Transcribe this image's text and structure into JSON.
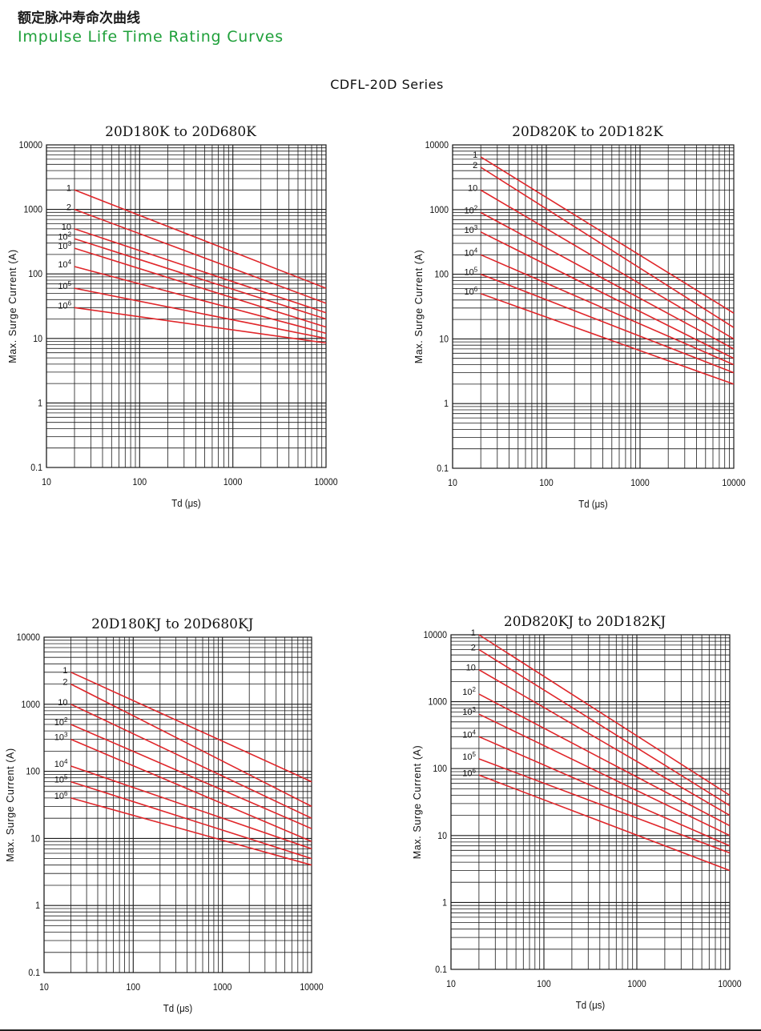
{
  "header": {
    "title_cn": "额定脉冲寿命次曲线",
    "title_en": "Impulse Life Time Rating Curves",
    "series": "CDFL-20D Series"
  },
  "colors": {
    "curve": "#e0262a",
    "grid": "#1a1a1a",
    "title_green": "#1fa03a"
  },
  "chart_data": [
    {
      "type": "line",
      "title": "20D180K  to  20D680K",
      "xlabel": "Td (μs)",
      "ylabel": "Max. Surge Current (A)",
      "xscale": "log",
      "yscale": "log",
      "xlim": [
        10,
        10000
      ],
      "ylim": [
        0.1,
        10000
      ],
      "xticks": [
        "10",
        "100",
        "1000",
        "10000"
      ],
      "yticks": [
        "0.1",
        "1",
        "10",
        "100",
        "1000",
        "10000"
      ],
      "series": [
        {
          "name": "1",
          "x": [
            20,
            10000
          ],
          "y": [
            2000,
            60
          ]
        },
        {
          "name": "2",
          "x": [
            20,
            10000
          ],
          "y": [
            1000,
            35
          ]
        },
        {
          "name": "10",
          "x": [
            20,
            10000
          ],
          "y": [
            500,
            25
          ]
        },
        {
          "name": "10^2",
          "x": [
            20,
            10000
          ],
          "y": [
            350,
            20
          ]
        },
        {
          "name": "10^3",
          "x": [
            20,
            10000
          ],
          "y": [
            250,
            15
          ]
        },
        {
          "name": "10^4",
          "x": [
            20,
            10000
          ],
          "y": [
            130,
            12
          ]
        },
        {
          "name": "10^5",
          "x": [
            20,
            10000
          ],
          "y": [
            60,
            10
          ]
        },
        {
          "name": "10^6",
          "x": [
            20,
            10000
          ],
          "y": [
            30,
            8.5
          ]
        }
      ]
    },
    {
      "type": "line",
      "title": "20D820K  to  20D182K",
      "xlabel": "Td (μs)",
      "ylabel": "Max. Surge Current (A)",
      "xscale": "log",
      "yscale": "log",
      "xlim": [
        10,
        10000
      ],
      "ylim": [
        0.1,
        10000
      ],
      "xticks": [
        "10",
        "100",
        "1000",
        "10000"
      ],
      "yticks": [
        "0.1",
        "1",
        "10",
        "100",
        "1000",
        "10000"
      ],
      "series": [
        {
          "name": "1",
          "x": [
            20,
            10000
          ],
          "y": [
            6500,
            25
          ]
        },
        {
          "name": "2",
          "x": [
            20,
            10000
          ],
          "y": [
            4500,
            15
          ]
        },
        {
          "name": "10",
          "x": [
            20,
            10000
          ],
          "y": [
            2000,
            10
          ]
        },
        {
          "name": "10^2",
          "x": [
            20,
            10000
          ],
          "y": [
            900,
            7
          ]
        },
        {
          "name": "10^3",
          "x": [
            20,
            10000
          ],
          "y": [
            450,
            5
          ]
        },
        {
          "name": "10^4",
          "x": [
            20,
            10000
          ],
          "y": [
            200,
            4
          ]
        },
        {
          "name": "10^5",
          "x": [
            20,
            10000
          ],
          "y": [
            100,
            3
          ]
        },
        {
          "name": "10^6",
          "x": [
            20,
            10000
          ],
          "y": [
            50,
            2
          ]
        }
      ]
    },
    {
      "type": "line",
      "title": "20D180KJ  to  20D680KJ",
      "xlabel": "Td (μs)",
      "ylabel": "Max. Surge Current (A)",
      "xscale": "log",
      "yscale": "log",
      "xlim": [
        10,
        10000
      ],
      "ylim": [
        0.1,
        10000
      ],
      "xticks": [
        "10",
        "100",
        "1000",
        "10000"
      ],
      "yticks": [
        "0.1",
        "1",
        "10",
        "100",
        "1000",
        "10000"
      ],
      "series": [
        {
          "name": "1",
          "x": [
            20,
            10000
          ],
          "y": [
            3000,
            70
          ]
        },
        {
          "name": "2",
          "x": [
            20,
            10000
          ],
          "y": [
            2000,
            30
          ]
        },
        {
          "name": "10",
          "x": [
            20,
            10000
          ],
          "y": [
            1000,
            20
          ]
        },
        {
          "name": "10^2",
          "x": [
            20,
            10000
          ],
          "y": [
            500,
            14
          ]
        },
        {
          "name": "10^3",
          "x": [
            20,
            10000
          ],
          "y": [
            300,
            9
          ]
        },
        {
          "name": "10^4",
          "x": [
            20,
            10000
          ],
          "y": [
            120,
            7
          ]
        },
        {
          "name": "10^5",
          "x": [
            20,
            10000
          ],
          "y": [
            70,
            5
          ]
        },
        {
          "name": "10^6",
          "x": [
            20,
            10000
          ],
          "y": [
            40,
            4
          ]
        }
      ]
    },
    {
      "type": "line",
      "title": "20D820KJ  to  20D182KJ",
      "xlabel": "Td (μs)",
      "ylabel": "Max. Surge Current (A)",
      "xscale": "log",
      "yscale": "log",
      "xlim": [
        10,
        10000
      ],
      "ylim": [
        0.1,
        10000
      ],
      "xticks": [
        "10",
        "100",
        "1000",
        "10000"
      ],
      "yticks": [
        "0.1",
        "1",
        "10",
        "100",
        "1000",
        "10000"
      ],
      "series": [
        {
          "name": "1",
          "x": [
            20,
            10000
          ],
          "y": [
            10000,
            40
          ]
        },
        {
          "name": "2",
          "x": [
            20,
            10000
          ],
          "y": [
            6000,
            28
          ]
        },
        {
          "name": "10",
          "x": [
            20,
            10000
          ],
          "y": [
            3000,
            20
          ]
        },
        {
          "name": "10^2",
          "x": [
            20,
            10000
          ],
          "y": [
            1300,
            14
          ]
        },
        {
          "name": "10^3",
          "x": [
            20,
            10000
          ],
          "y": [
            650,
            10
          ]
        },
        {
          "name": "10^4",
          "x": [
            20,
            10000
          ],
          "y": [
            300,
            7
          ]
        },
        {
          "name": "10^5",
          "x": [
            20,
            10000
          ],
          "y": [
            140,
            5.5
          ]
        },
        {
          "name": "10^6",
          "x": [
            20,
            10000
          ],
          "y": [
            80,
            3
          ]
        }
      ]
    }
  ]
}
